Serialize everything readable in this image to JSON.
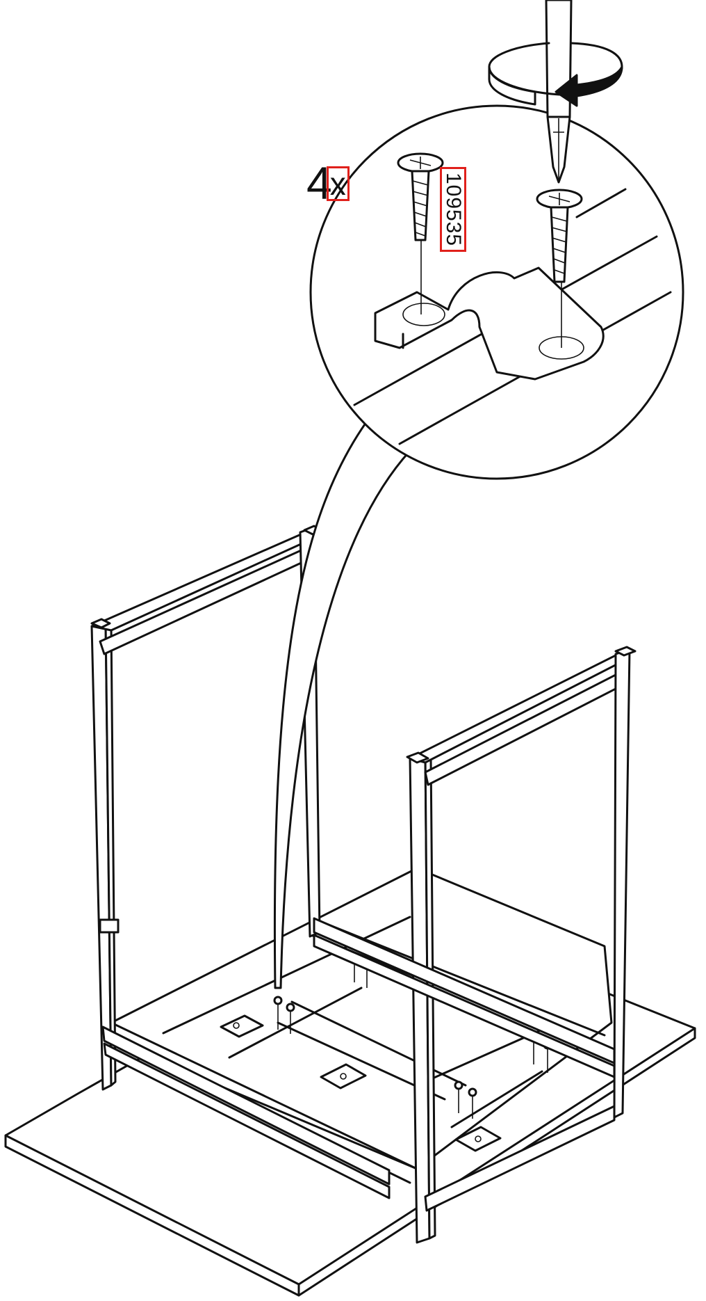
{
  "instruction": {
    "quantity": "4",
    "multiplier": "x",
    "part_number": "109535"
  },
  "icons": {
    "rotation": "clockwise-rotation-arrow-icon",
    "screwdriver": "phillips-screwdriver-icon",
    "screw": "wood-screw-icon",
    "clamp": "pipe-clamp-icon"
  },
  "colors": {
    "line": "#111111",
    "highlight": "#e0201b",
    "background": "#ffffff"
  }
}
